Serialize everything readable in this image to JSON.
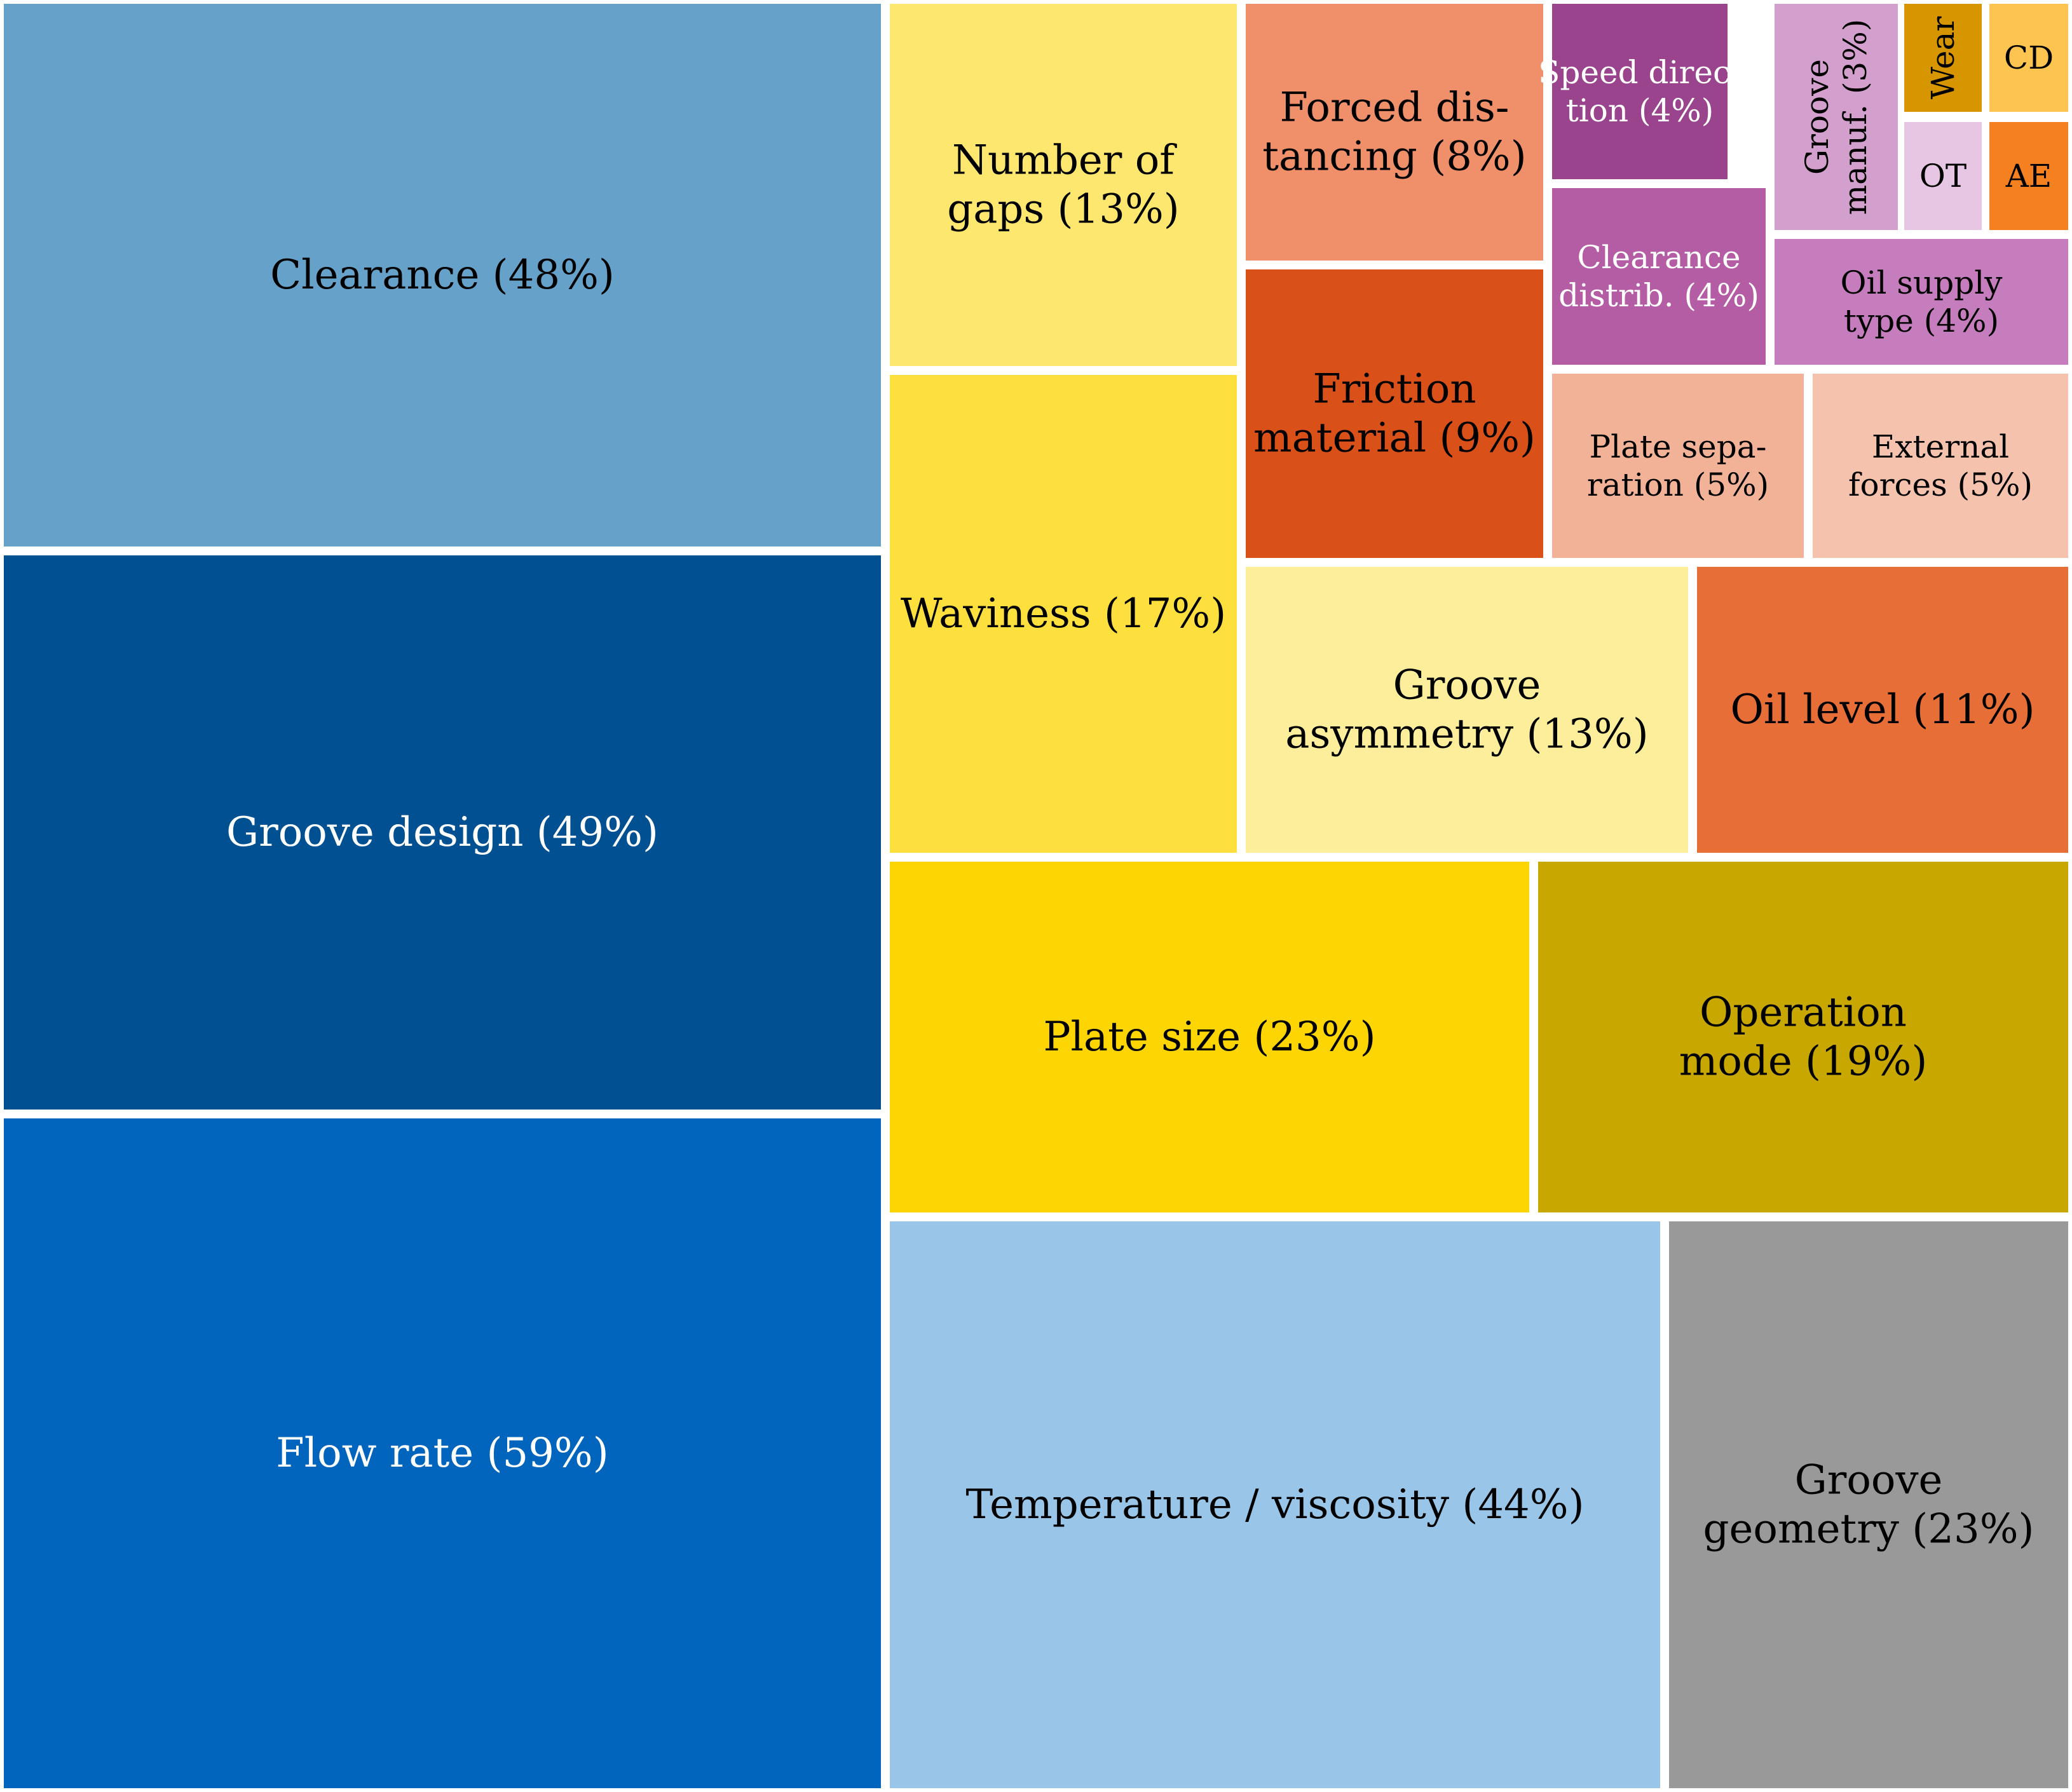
{
  "chart_data": {
    "type": "treemap",
    "title": "",
    "items": [
      {
        "key": "clearance",
        "label": [
          "Clearance (48%)"
        ],
        "value": 48,
        "color": "#66a1c9",
        "text_color": "#000000"
      },
      {
        "key": "groove-design",
        "label": [
          "Groove design (49%)"
        ],
        "value": 49,
        "color": "#015092",
        "text_color": "#ffffff"
      },
      {
        "key": "flow-rate",
        "label": [
          "Flow rate (59%)"
        ],
        "value": 59,
        "color": "#0165bd",
        "text_color": "#ffffff"
      },
      {
        "key": "number-of-gaps",
        "label": [
          "Number of",
          "gaps (13%)"
        ],
        "value": 13,
        "color": "#fde76e",
        "text_color": "#000000"
      },
      {
        "key": "waviness",
        "label": [
          "Waviness (17%)"
        ],
        "value": 17,
        "color": "#fddf3e",
        "text_color": "#000000"
      },
      {
        "key": "forced-distancing",
        "label": [
          "Forced dis-",
          "tancing (8%)"
        ],
        "value": 8,
        "color": "#f0906a",
        "text_color": "#000000"
      },
      {
        "key": "friction-material",
        "label": [
          "Friction",
          "material (9%)"
        ],
        "value": 9,
        "color": "#d95118",
        "text_color": "#000000"
      },
      {
        "key": "speed-direction",
        "label": [
          "Speed direc-",
          "tion (4%)"
        ],
        "value": 4,
        "color": "#99448c",
        "text_color": "#ffffff"
      },
      {
        "key": "groove-manuf",
        "label": [
          "Groove",
          "manuf. (3%)"
        ],
        "value": 3,
        "color": "#d3a0ce",
        "text_color": "#000000",
        "rotated": true
      },
      {
        "key": "wear",
        "label": [
          "Wear"
        ],
        "value": 1,
        "color": "#d79600",
        "text_color": "#000000",
        "rotated": true
      },
      {
        "key": "cd",
        "label": [
          "CD"
        ],
        "value": 1,
        "color": "#fdc44f",
        "text_color": "#000000"
      },
      {
        "key": "ot",
        "label": [
          "OT"
        ],
        "value": 1,
        "color": "#e7c6e3",
        "text_color": "#000000"
      },
      {
        "key": "ae",
        "label": [
          "AE"
        ],
        "value": 1,
        "color": "#f48020",
        "text_color": "#000000"
      },
      {
        "key": "clearance-distrib",
        "label": [
          "Clearance",
          "distrib. (4%)"
        ],
        "value": 4,
        "color": "#b45ca4",
        "text_color": "#ffffff"
      },
      {
        "key": "oil-supply-type",
        "label": [
          "Oil supply",
          "type (4%)"
        ],
        "value": 4,
        "color": "#c57dbd",
        "text_color": "#000000"
      },
      {
        "key": "plate-separation",
        "label": [
          "Plate sepa-",
          "ration (5%)"
        ],
        "value": 5,
        "color": "#f2b298",
        "text_color": "#000000"
      },
      {
        "key": "external-forces",
        "label": [
          "External",
          "forces (5%)"
        ],
        "value": 5,
        "color": "#f5c2ad",
        "text_color": "#000000"
      },
      {
        "key": "groove-asymmetry",
        "label": [
          "Groove",
          "asymmetry (13%)"
        ],
        "value": 13,
        "color": "#fdee9c",
        "text_color": "#000000"
      },
      {
        "key": "oil-level",
        "label": [
          "Oil level (11%)"
        ],
        "value": 11,
        "color": "#e86e37",
        "text_color": "#000000"
      },
      {
        "key": "plate-size",
        "label": [
          "Plate size (23%)"
        ],
        "value": 23,
        "color": "#fcd502",
        "text_color": "#000000"
      },
      {
        "key": "operation-mode",
        "label": [
          "Operation",
          "mode (19%)"
        ],
        "value": 19,
        "color": "#c8a700",
        "text_color": "#000000"
      },
      {
        "key": "temperature-viscosity",
        "label": [
          "Temperature / viscosity (44%)"
        ],
        "value": 44,
        "color": "#99c5e8",
        "text_color": "#000000"
      },
      {
        "key": "groove-geometry",
        "label": [
          "Groove",
          "geometry (23%)"
        ],
        "value": 23,
        "color": "#999999",
        "text_color": "#000000"
      }
    ]
  }
}
